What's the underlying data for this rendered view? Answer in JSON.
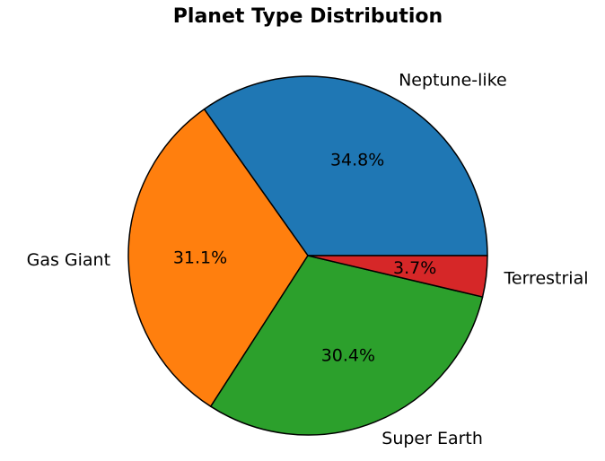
{
  "chart_data": {
    "type": "pie",
    "title": "Planet Type Distribution",
    "start_angle_deg": 0,
    "direction": "counterclockwise",
    "slices": [
      {
        "label": "Neptune-like",
        "pct_label": "34.8%",
        "value": 34.8,
        "color": "#1f77b4"
      },
      {
        "label": "Gas Giant",
        "pct_label": "31.1%",
        "value": 31.1,
        "color": "#ff7f0e"
      },
      {
        "label": "Super Earth",
        "pct_label": "30.4%",
        "value": 30.4,
        "color": "#2ca02c"
      },
      {
        "label": "Terrestrial",
        "pct_label": "3.7%",
        "value": 3.7,
        "color": "#d62728"
      }
    ]
  }
}
